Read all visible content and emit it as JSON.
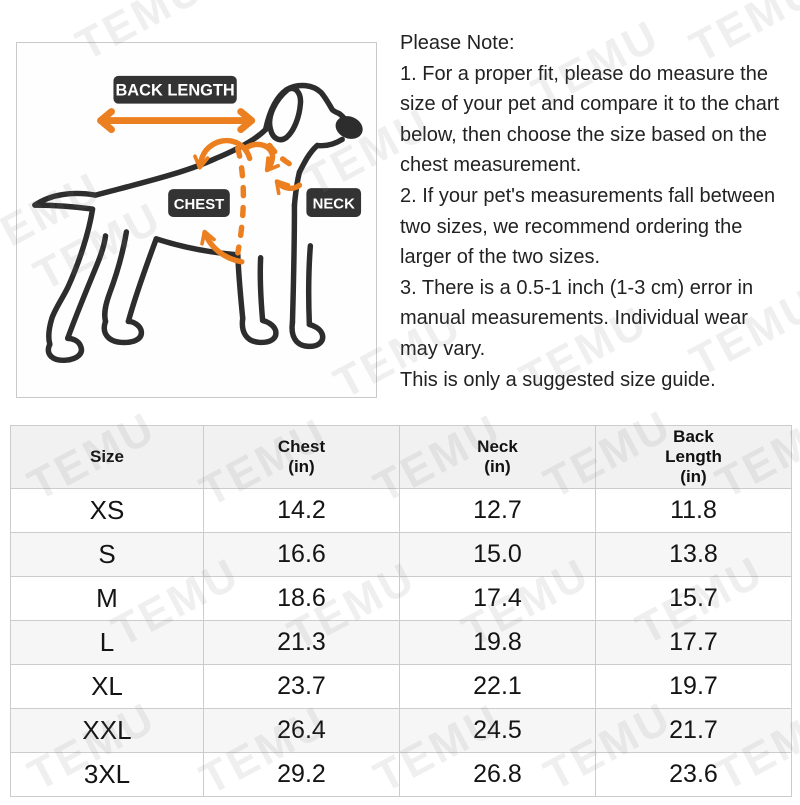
{
  "watermark": {
    "text": "TEMU"
  },
  "diagram": {
    "labels": {
      "back_length": "BACK LENGTH",
      "chest": "CHEST",
      "neck": "NECK"
    },
    "colors": {
      "accent_orange": "#EC8020",
      "label_bg": "#333333",
      "outline": "#2D2D2D"
    }
  },
  "note": {
    "lines": [
      "Please Note:",
      "1. For a proper fit, please do measure the",
      "size of your pet and compare it to the chart",
      "below, then choose the size based on the",
      "chest measurement.",
      "2. If your pet's measurements fall between",
      "two sizes, we recommend ordering the",
      "larger of the two sizes.",
      "3. There is a 0.5-1 inch (1-3 cm) error in",
      "manual measurements. Individual wear",
      "may vary.",
      "This is only a suggested size guide."
    ]
  },
  "chart_data": {
    "type": "table",
    "title": "Pet size chart (inches)",
    "columns": [
      "Size",
      "Chest (in)",
      "Neck (in)",
      "Back Length (in)"
    ],
    "rows": [
      [
        "XS",
        14.2,
        12.7,
        11.8
      ],
      [
        "S",
        16.6,
        15.0,
        13.8
      ],
      [
        "M",
        18.6,
        17.4,
        15.7
      ],
      [
        "L",
        21.3,
        19.8,
        17.7
      ],
      [
        "XL",
        23.7,
        22.1,
        19.7
      ],
      [
        "XXL",
        26.4,
        24.5,
        21.7
      ],
      [
        "3XL",
        29.2,
        26.8,
        23.6
      ]
    ]
  },
  "size_chart": {
    "headers": {
      "size": "Size",
      "chest": "Chest\n(in)",
      "neck": "Neck\n(in)",
      "back_length": "Back\nLength\n(in)"
    },
    "rows": [
      {
        "size": "XS",
        "chest": "14.2",
        "neck": "12.7",
        "back_length": "11.8"
      },
      {
        "size": "S",
        "chest": "16.6",
        "neck": "15.0",
        "back_length": "13.8"
      },
      {
        "size": "M",
        "chest": "18.6",
        "neck": "17.4",
        "back_length": "15.7"
      },
      {
        "size": "L",
        "chest": "21.3",
        "neck": "19.8",
        "back_length": "17.7"
      },
      {
        "size": "XL",
        "chest": "23.7",
        "neck": "22.1",
        "back_length": "19.7"
      },
      {
        "size": "XXL",
        "chest": "26.4",
        "neck": "24.5",
        "back_length": "21.7"
      },
      {
        "size": "3XL",
        "chest": "29.2",
        "neck": "26.8",
        "back_length": "23.6"
      }
    ]
  }
}
